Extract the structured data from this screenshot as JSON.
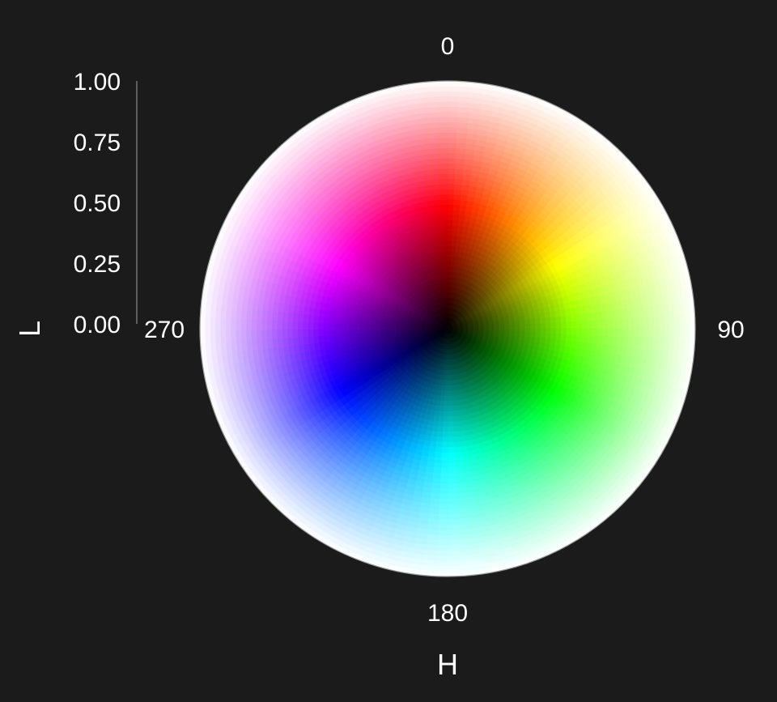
{
  "chart_data": {
    "type": "polar-color-wheel",
    "colorspace": "HSL",
    "angular_axis": {
      "label": "H",
      "range": [
        0,
        360
      ],
      "direction": "clockwise",
      "zero_at": "top",
      "tick_labels": [
        "0",
        "90",
        "180",
        "270"
      ],
      "ticks": [
        0,
        90,
        180,
        270
      ]
    },
    "radial_axis": {
      "label": "L",
      "range": [
        0,
        1
      ],
      "tick_labels": [
        "0.00",
        "0.25",
        "0.50",
        "0.75",
        "1.00"
      ],
      "ticks": [
        0,
        0.25,
        0.5,
        0.75,
        1
      ]
    },
    "saturation": 1,
    "hue_samples": 120,
    "lightness_samples": 48,
    "hue_colors": {
      "0": "#e01020",
      "60": "#e0e020",
      "120": "#20e020",
      "180": "#20e0e0",
      "240": "#2020e0",
      "300": "#e020e0"
    },
    "background": "#1b1b1b",
    "grid": false
  }
}
